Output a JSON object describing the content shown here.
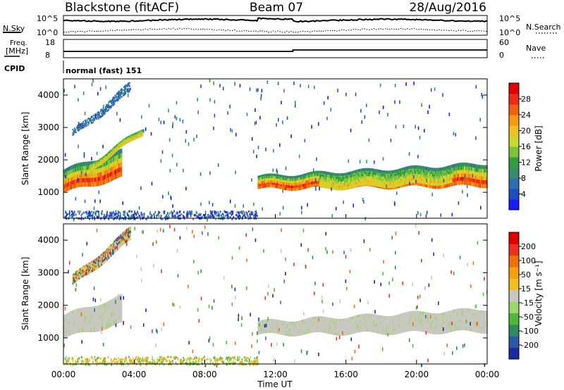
{
  "header": {
    "station": "Blackstone (fitACF)",
    "beam": "Beam 07",
    "date": "28/Aug/2016"
  },
  "top_panel": {
    "nsky_label": "N.Sky",
    "nsearch_label": "N.Search",
    "left_ticks": [
      "10^5",
      "10^0"
    ],
    "right_ticks": [
      "10^5",
      "10^0"
    ],
    "freq_label": "Freq.",
    "freq_unit": "[MHz]",
    "freq_ticks": [
      "18",
      "8"
    ],
    "nave_label": "Nave",
    "nave_ticks": [
      "60",
      "0"
    ],
    "cpid_label": "CPID",
    "cpid_text": "normal (fast) 151"
  },
  "time_axis": {
    "label": "Time UT",
    "ticks": [
      "00:00",
      "04:00",
      "08:00",
      "12:00",
      "16:00",
      "20:00",
      "00:00"
    ]
  },
  "chart_data": [
    {
      "type": "heatmap",
      "panel": "power",
      "ylabel": "Slant Range [km]",
      "yticks": [
        1000,
        2000,
        3000,
        4000
      ],
      "ylim": [
        200,
        4500
      ],
      "xlim_hours": [
        0,
        24
      ],
      "colorbar": {
        "label": "Power [dB]",
        "ticks": [
          4,
          8,
          12,
          16,
          20,
          24,
          28
        ],
        "colors": [
          "#1a1aff",
          "#1e4fbf",
          "#2e6fb0",
          "#3b8a6e",
          "#2f9f3f",
          "#7bc440",
          "#c8d830",
          "#f0c020",
          "#f59a10",
          "#f06010",
          "#ee2a1a",
          "#e00000"
        ]
      },
      "bands": [
        {
          "t0": 0.0,
          "t1": 3.3,
          "r0_start": 1000,
          "r0_end": 1450,
          "r1_start": 1700,
          "r1_end": 2300,
          "intensity": "high"
        },
        {
          "t0": 1.5,
          "t1": 4.5,
          "r0_start": 1700,
          "r0_end": 2800,
          "r1_start": 1900,
          "r1_end": 3000,
          "intensity": "medium"
        },
        {
          "t0": 0.5,
          "t1": 3.8,
          "r0_start": 2700,
          "r0_end": 4100,
          "r1_start": 2900,
          "r1_end": 4400,
          "intensity": "low"
        },
        {
          "t0": 11.0,
          "t1": 24.0,
          "r0_start": 1100,
          "r0_end": 1200,
          "r1_start": 1500,
          "r1_end": 1900,
          "intensity": "high"
        },
        {
          "t0": 14.5,
          "t1": 22.0,
          "r0_start": 1100,
          "r0_end": 1300,
          "r1_start": 1500,
          "r1_end": 1700,
          "intensity": "medium"
        }
      ]
    },
    {
      "type": "heatmap",
      "panel": "velocity",
      "ylabel": "Slant Range [km]",
      "yticks": [
        1000,
        2000,
        3000,
        4000
      ],
      "ylim": [
        200,
        4500
      ],
      "xlim_hours": [
        0,
        24
      ],
      "colorbar": {
        "label": "Velocity [m s^-1]",
        "ticks": [
          200,
          100,
          50,
          15,
          -15,
          -50,
          -100,
          -200
        ],
        "colors": [
          "#1a2a9f",
          "#2a5aa0",
          "#2f8a5f",
          "#4cba3a",
          "#9ed46a",
          "#c8c8c0",
          "#f0c020",
          "#f5a010",
          "#f07010",
          "#ee3020",
          "#e00000"
        ]
      },
      "bands": [
        {
          "t0": 0.0,
          "t1": 3.3,
          "r0_start": 1000,
          "r0_end": 1450,
          "r1_start": 1700,
          "r1_end": 2300,
          "intensity": "ground"
        },
        {
          "t0": 0.5,
          "t1": 3.8,
          "r0_start": 2600,
          "r0_end": 4000,
          "r1_start": 2900,
          "r1_end": 4400,
          "intensity": "mixed"
        },
        {
          "t0": 11.0,
          "t1": 24.0,
          "r0_start": 1100,
          "r0_end": 1200,
          "r1_start": 1500,
          "r1_end": 1900,
          "intensity": "ground"
        }
      ]
    }
  ]
}
